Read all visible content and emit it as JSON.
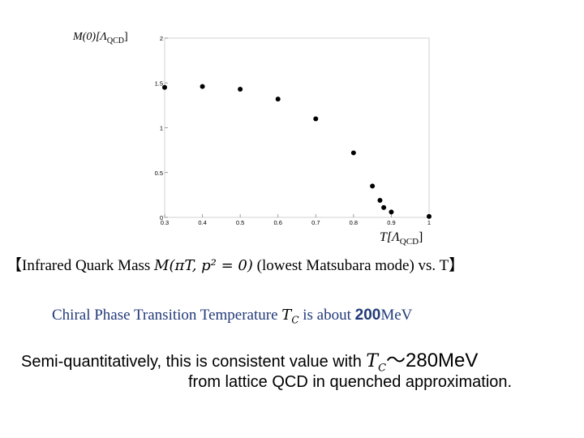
{
  "chart_data": {
    "type": "scatter",
    "ylabel": "M(0)[Λ",
    "ylabel_sub": "QCD",
    "ylabel_close": "]",
    "xlabel": "T[Λ",
    "xlabel_sub": "QCD",
    "xlabel_close": "]",
    "xlim": [
      0.3,
      1.0
    ],
    "ylim": [
      0,
      2
    ],
    "xticks": [
      "0.3",
      "0.4",
      "0.5",
      "0.6",
      "0.7",
      "0.8",
      "0.9",
      "1"
    ],
    "xtick_values": [
      0.3,
      0.4,
      0.5,
      0.6,
      0.7,
      0.8,
      0.9,
      1.0
    ],
    "yticks": [
      "0",
      "0.5",
      "1",
      "1.5",
      "2"
    ],
    "ytick_values": [
      0,
      0.5,
      1,
      1.5,
      2
    ],
    "grid": false,
    "marker_color": "#000000",
    "x": [
      0.3,
      0.4,
      0.5,
      0.6,
      0.7,
      0.8,
      0.85,
      0.87,
      0.88,
      0.9,
      1.0
    ],
    "y": [
      1.45,
      1.46,
      1.43,
      1.32,
      1.1,
      0.72,
      0.35,
      0.19,
      0.11,
      0.06,
      0.01
    ]
  },
  "caption": {
    "open_bracket": "【",
    "text_before": "Infrared Quark Mass ",
    "math": "M(πT, p² = 0)",
    "text_after": " (lowest Matsubara mode) vs. T",
    "close_bracket": "】"
  },
  "line2": {
    "text_before": "Chiral Phase Transition Temperature ",
    "math": "T",
    "math_sub": "C",
    "text_mid": " is about ",
    "value": "200",
    "unit": "MeV",
    "accent_color": "#223a7a"
  },
  "line3": {
    "text_before": "Semi-quantitatively, this is consistent value with ",
    "math": "T",
    "math_sub": "C",
    "approx": "～",
    "value": "280MeV"
  },
  "line4": {
    "text": "from lattice QCD in quenched approximation."
  }
}
